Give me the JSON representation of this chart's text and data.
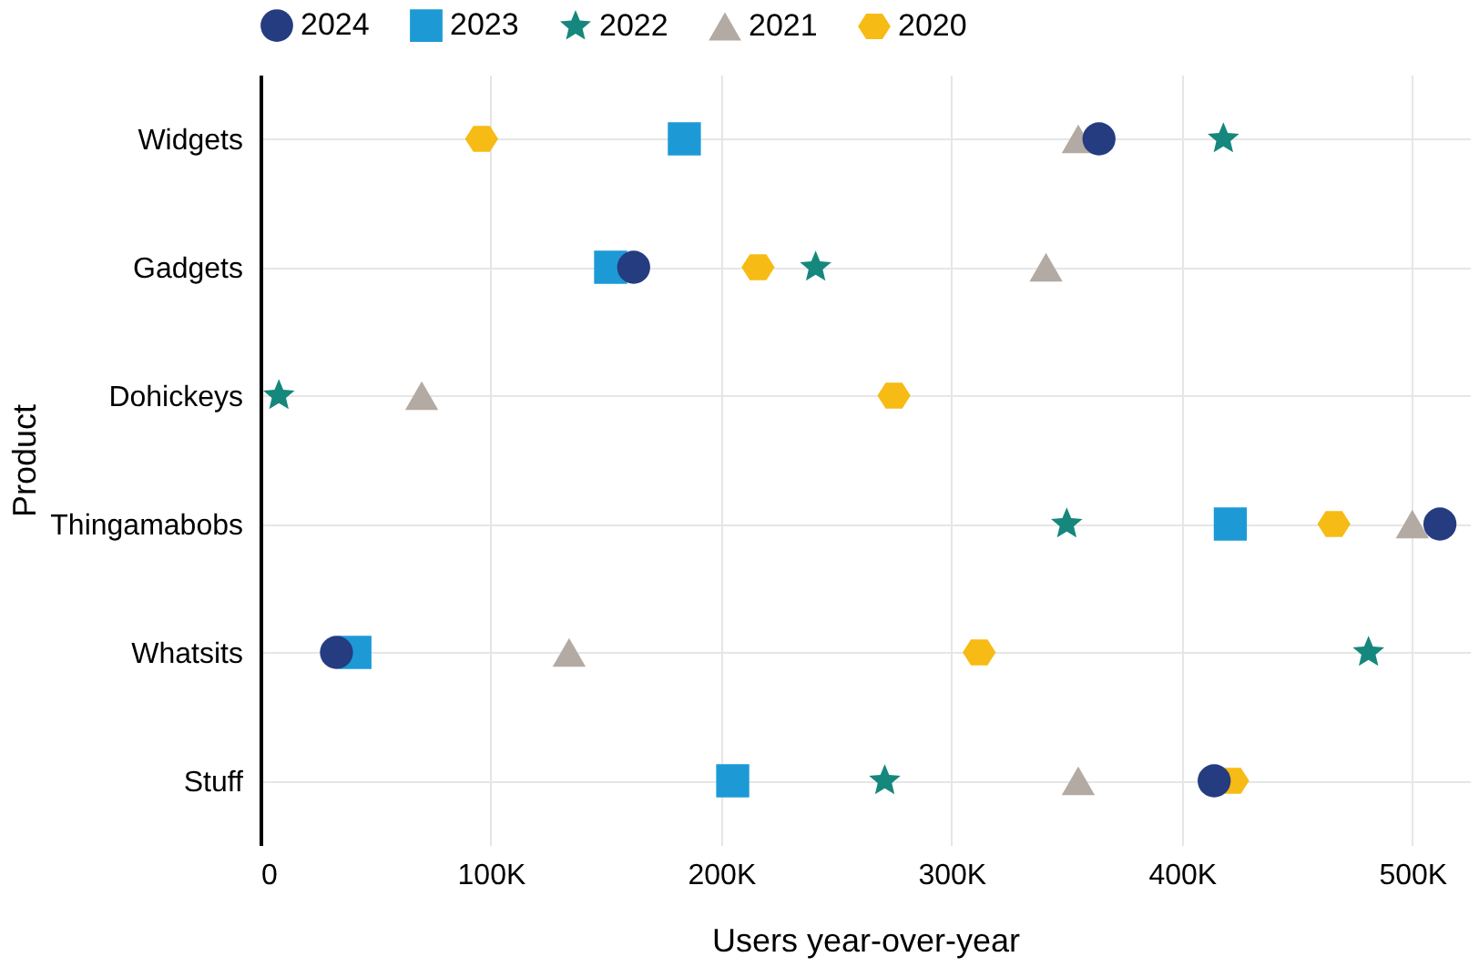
{
  "chart_data": {
    "type": "scatter",
    "orientation": "horizontal",
    "xlabel": "Users year-over-year",
    "ylabel": "Product",
    "categories": [
      "Widgets",
      "Gadgets",
      "Dohickeys",
      "Thingamabobs",
      "Whatsits",
      "Stuff"
    ],
    "series": [
      {
        "name": "2024",
        "color": "#253c80",
        "marker": "circle",
        "values": [
          364000,
          162000,
          null,
          512000,
          33000,
          414000
        ]
      },
      {
        "name": "2023",
        "color": "#1d9ad6",
        "marker": "square",
        "values": [
          184000,
          152000,
          null,
          421000,
          41000,
          205000
        ]
      },
      {
        "name": "2022",
        "color": "#16877c",
        "marker": "star",
        "values": [
          418000,
          241000,
          8000,
          350000,
          481000,
          271000
        ]
      },
      {
        "name": "2021",
        "color": "#b3aaa3",
        "marker": "triangle",
        "values": [
          355000,
          341000,
          70000,
          500000,
          134000,
          355000
        ]
      },
      {
        "name": "2020",
        "color": "#f6bb14",
        "values": [
          96000,
          216000,
          275000,
          466000,
          312000,
          422000
        ]
      }
    ],
    "xlim": [
      0,
      525000
    ],
    "xticks": [
      {
        "value": 0,
        "label": "0"
      },
      {
        "value": 100000,
        "label": "100K"
      },
      {
        "value": 200000,
        "label": "200K"
      },
      {
        "value": 300000,
        "label": "300K"
      },
      {
        "value": 400000,
        "label": "400K"
      },
      {
        "value": 500000,
        "label": "500K"
      }
    ],
    "grid": true,
    "legend": "top"
  }
}
